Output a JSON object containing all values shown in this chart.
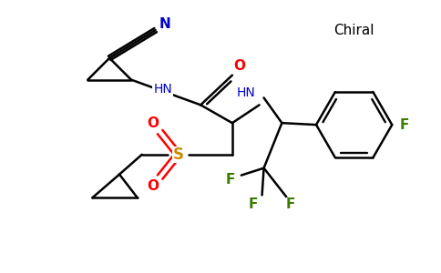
{
  "background_color": "#ffffff",
  "chiral_label": "Chiral",
  "atom_colors": {
    "N": "#0000cc",
    "O": "#ff0000",
    "S": "#cc8800",
    "F": "#3d7a00",
    "C": "#000000"
  },
  "bond_lw": 1.8,
  "font_size": 9.5
}
